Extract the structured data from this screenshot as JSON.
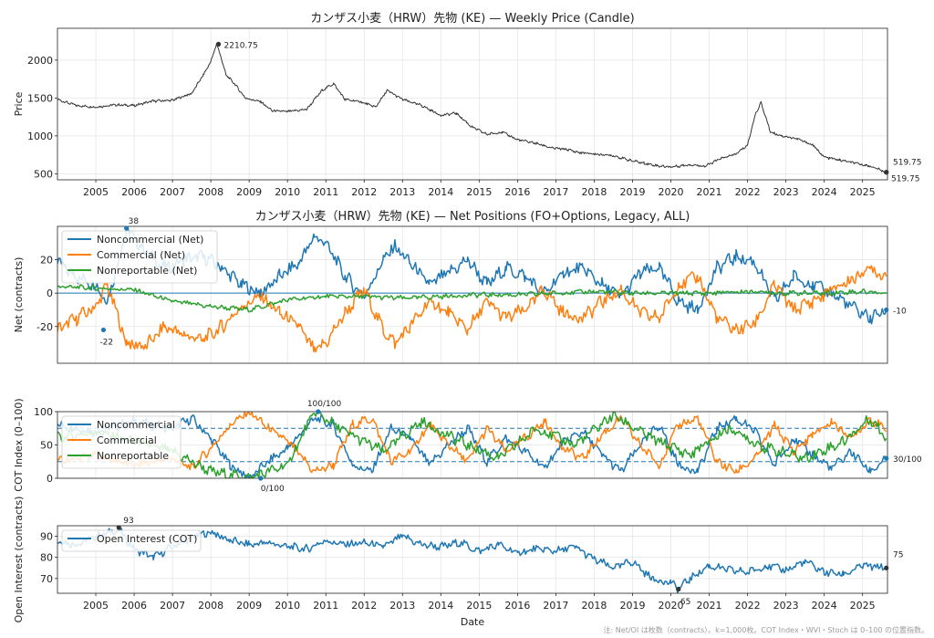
{
  "footnote": "注: Net/OI は枚数（contracts）。k=1,000枚。COT Index・WVI・Stoch は 0–100 の位置指数。",
  "colors": {
    "price": "#333333",
    "noncommercial": "#1f77b4",
    "commercial": "#ff7f0e",
    "nonreportable": "#2ca02c",
    "grid": "#e6e6e6"
  },
  "chart_data": [
    {
      "type": "line",
      "title": "カンザス小麦（HRW）先物 (KE) — Weekly Price (Candle)",
      "ylabel": "Price",
      "xlim": [
        2004.0,
        2025.65
      ],
      "ylim": [
        420,
        2420
      ],
      "xticks": [
        2005,
        2006,
        2007,
        2008,
        2009,
        2010,
        2011,
        2012,
        2013,
        2014,
        2015,
        2016,
        2017,
        2018,
        2019,
        2020,
        2021,
        2022,
        2023,
        2024,
        2025
      ],
      "yticks": [
        500,
        1000,
        1500,
        2000
      ],
      "annotations": [
        {
          "x": 2008.2,
          "y": 2210.75,
          "label": "2210.75"
        },
        {
          "x": 2025.62,
          "y": 519.75,
          "label": "519.75"
        },
        {
          "x": 2025.62,
          "y": 519.75,
          "label": "519.75"
        }
      ],
      "series": [
        {
          "x": [
            2004.0,
            2004.5,
            2005.0,
            2005.5,
            2006.0,
            2006.5,
            2007.0,
            2007.5,
            2007.8,
            2008.0,
            2008.15,
            2008.2,
            2008.4,
            2008.6,
            2008.9,
            2009.3,
            2009.6,
            2010.0,
            2010.5,
            2010.9,
            2011.2,
            2011.5,
            2011.9,
            2012.3,
            2012.6,
            2013.0,
            2013.5,
            2014.0,
            2014.4,
            2014.8,
            2015.2,
            2015.6,
            2016.0,
            2016.5,
            2016.9,
            2017.3,
            2017.6,
            2018.0,
            2018.5,
            2018.9,
            2019.3,
            2019.7,
            2020.0,
            2020.5,
            2020.9,
            2021.3,
            2021.7,
            2022.0,
            2022.2,
            2022.35,
            2022.6,
            2022.9,
            2023.3,
            2023.7,
            2024.0,
            2024.4,
            2024.8,
            2025.2,
            2025.62
          ],
          "values": [
            1480,
            1400,
            1380,
            1410,
            1400,
            1460,
            1470,
            1560,
            1800,
            1980,
            2210,
            2150,
            1800,
            1700,
            1500,
            1450,
            1330,
            1320,
            1350,
            1600,
            1690,
            1480,
            1450,
            1380,
            1600,
            1480,
            1400,
            1270,
            1300,
            1120,
            1020,
            1050,
            950,
            900,
            840,
            820,
            780,
            760,
            740,
            680,
            640,
            600,
            590,
            620,
            600,
            700,
            760,
            880,
            1280,
            1440,
            1050,
            1000,
            960,
            880,
            720,
            680,
            640,
            600,
            519.75
          ]
        }
      ]
    },
    {
      "type": "line",
      "title": "カンザス小麦（HRW）先物 (KE) — Net Positions (FO+Options, Legacy, ALL)",
      "ylabel": "Net (contracts)",
      "xlim": [
        2004.0,
        2025.65
      ],
      "ylim": [
        -42,
        40
      ],
      "yticks": [
        -20,
        0,
        20
      ],
      "legend": "top-left",
      "annotations": [
        {
          "x": 2005.8,
          "y": 38,
          "label": "38"
        },
        {
          "x": 2005.2,
          "y": -22,
          "label": "-22"
        },
        {
          "x": 2025.62,
          "y": -10,
          "label": "-10"
        }
      ],
      "series": [
        {
          "name": "Noncommercial (Net)",
          "x": [
            2004.0,
            2004.5,
            2005.0,
            2005.3,
            2005.8,
            2006.3,
            2006.8,
            2007.3,
            2007.8,
            2008.3,
            2008.8,
            2009.3,
            2009.8,
            2010.3,
            2010.7,
            2011.0,
            2011.5,
            2012.0,
            2012.5,
            2012.8,
            2013.2,
            2013.7,
            2014.2,
            2014.7,
            2015.2,
            2015.7,
            2016.2,
            2016.7,
            2017.2,
            2017.7,
            2018.2,
            2018.7,
            2019.2,
            2019.7,
            2020.2,
            2020.7,
            2021.2,
            2021.7,
            2022.2,
            2022.7,
            2023.2,
            2023.7,
            2024.2,
            2024.7,
            2025.2,
            2025.62
          ],
          "values": [
            18,
            10,
            5,
            -5,
            38,
            25,
            15,
            20,
            22,
            15,
            5,
            0,
            10,
            18,
            34,
            30,
            10,
            -2,
            20,
            28,
            18,
            5,
            12,
            20,
            5,
            15,
            10,
            0,
            12,
            15,
            5,
            -2,
            12,
            15,
            -5,
            -10,
            15,
            22,
            18,
            -5,
            10,
            5,
            0,
            -8,
            -15,
            -10
          ]
        },
        {
          "name": "Commercial (Net)",
          "x": [
            2004.0,
            2004.5,
            2005.0,
            2005.3,
            2005.8,
            2006.3,
            2006.8,
            2007.3,
            2007.8,
            2008.3,
            2008.8,
            2009.3,
            2009.8,
            2010.3,
            2010.7,
            2011.0,
            2011.5,
            2012.0,
            2012.5,
            2012.8,
            2013.2,
            2013.7,
            2014.2,
            2014.7,
            2015.2,
            2015.7,
            2016.2,
            2016.7,
            2017.2,
            2017.7,
            2018.2,
            2018.7,
            2019.2,
            2019.7,
            2020.2,
            2020.7,
            2021.2,
            2021.7,
            2022.2,
            2022.7,
            2023.2,
            2023.7,
            2024.2,
            2024.7,
            2025.2,
            2025.62
          ],
          "values": [
            -22,
            -15,
            -8,
            5,
            -30,
            -32,
            -20,
            -25,
            -28,
            -20,
            -8,
            -2,
            -12,
            -20,
            -35,
            -30,
            -12,
            2,
            -22,
            -30,
            -20,
            -5,
            -12,
            -22,
            -5,
            -15,
            -10,
            2,
            -12,
            -15,
            -5,
            2,
            -12,
            -15,
            5,
            10,
            -15,
            -22,
            -18,
            5,
            -10,
            -5,
            2,
            8,
            15,
            10
          ]
        },
        {
          "name": "Nonreportable (Net)",
          "x": [
            2004.0,
            2005.0,
            2006.0,
            2007.0,
            2008.0,
            2009.0,
            2010.0,
            2011.0,
            2012.0,
            2013.0,
            2014.0,
            2015.0,
            2016.0,
            2017.0,
            2018.0,
            2019.0,
            2020.0,
            2021.0,
            2022.0,
            2023.0,
            2024.0,
            2025.0,
            2025.62
          ],
          "values": [
            4,
            3,
            2,
            -5,
            -8,
            -10,
            -4,
            -2,
            -2,
            -3,
            -2,
            -1,
            -1,
            0,
            1,
            0,
            0,
            0,
            1,
            0,
            0,
            1,
            0
          ]
        }
      ]
    },
    {
      "type": "line",
      "ylabel": "COT Index (0–100)",
      "xlim": [
        2004.0,
        2025.65
      ],
      "ylim": [
        0,
        100
      ],
      "yticks": [
        0,
        50,
        100
      ],
      "hlines": [
        25,
        75
      ],
      "legend": "top-left",
      "annotations": [
        {
          "x": 2010.8,
          "y": 100,
          "label": "100/100"
        },
        {
          "x": 2009.3,
          "y": 0,
          "label": "0/100"
        },
        {
          "x": 2025.62,
          "y": 30,
          "label": "30/100"
        }
      ],
      "series": [
        {
          "name": "Noncommercial",
          "x": [
            2004.0,
            2005.0,
            2006.0,
            2007.0,
            2007.5,
            2008.0,
            2008.5,
            2009.0,
            2009.5,
            2010.0,
            2010.7,
            2011.2,
            2011.7,
            2012.2,
            2012.7,
            2013.2,
            2013.7,
            2014.2,
            2014.7,
            2015.2,
            2015.7,
            2016.2,
            2016.7,
            2017.2,
            2017.7,
            2018.2,
            2018.7,
            2019.2,
            2019.7,
            2020.2,
            2020.7,
            2021.2,
            2021.7,
            2022.2,
            2022.7,
            2023.2,
            2023.7,
            2024.2,
            2024.7,
            2025.2,
            2025.62
          ],
          "values": [
            80,
            70,
            85,
            75,
            90,
            60,
            20,
            0,
            25,
            45,
            90,
            80,
            20,
            10,
            75,
            60,
            20,
            50,
            75,
            25,
            60,
            40,
            15,
            55,
            70,
            35,
            10,
            50,
            80,
            20,
            10,
            75,
            90,
            70,
            20,
            60,
            35,
            15,
            40,
            10,
            30
          ]
        },
        {
          "name": "Commercial",
          "x": [
            2004.0,
            2005.0,
            2006.0,
            2007.0,
            2007.5,
            2008.0,
            2008.5,
            2009.0,
            2009.5,
            2010.0,
            2010.7,
            2011.2,
            2011.7,
            2012.2,
            2012.7,
            2013.2,
            2013.7,
            2014.2,
            2014.7,
            2015.2,
            2015.7,
            2016.2,
            2016.7,
            2017.2,
            2017.7,
            2018.2,
            2018.7,
            2019.2,
            2019.7,
            2020.2,
            2020.7,
            2021.2,
            2021.7,
            2022.2,
            2022.7,
            2023.2,
            2023.7,
            2024.2,
            2024.7,
            2025.2,
            2025.62
          ],
          "values": [
            25,
            35,
            20,
            30,
            15,
            45,
            80,
            100,
            75,
            55,
            10,
            20,
            80,
            90,
            25,
            40,
            80,
            50,
            25,
            75,
            40,
            60,
            85,
            45,
            30,
            65,
            90,
            50,
            20,
            80,
            90,
            25,
            10,
            30,
            80,
            40,
            65,
            85,
            60,
            90,
            70
          ]
        },
        {
          "name": "Nonreportable",
          "x": [
            2004.0,
            2005.0,
            2006.0,
            2007.0,
            2008.0,
            2009.0,
            2010.0,
            2010.7,
            2011.5,
            2012.5,
            2013.5,
            2014.5,
            2015.5,
            2016.5,
            2017.5,
            2018.5,
            2019.5,
            2020.5,
            2021.5,
            2022.5,
            2023.5,
            2024.5,
            2025.2,
            2025.62
          ],
          "values": [
            60,
            70,
            55,
            40,
            10,
            0,
            20,
            100,
            70,
            40,
            85,
            55,
            30,
            75,
            50,
            95,
            60,
            35,
            75,
            45,
            30,
            55,
            90,
            60
          ]
        }
      ]
    },
    {
      "type": "line",
      "ylabel": "Open Interest (contracts)",
      "xlabel": "Date",
      "xlim": [
        2004.0,
        2025.65
      ],
      "ylim": [
        63,
        95
      ],
      "xticks": [
        2005,
        2006,
        2007,
        2008,
        2009,
        2010,
        2011,
        2012,
        2013,
        2014,
        2015,
        2016,
        2017,
        2018,
        2019,
        2020,
        2021,
        2022,
        2023,
        2024,
        2025
      ],
      "yticks": [
        70,
        80,
        90
      ],
      "legend": "top-left",
      "annotations": [
        {
          "x": 2005.6,
          "y": 93,
          "label": "93"
        },
        {
          "x": 2020.2,
          "y": 65,
          "label": "65"
        },
        {
          "x": 2025.62,
          "y": 75,
          "label": "75"
        }
      ],
      "series": [
        {
          "name": "Open Interest (COT)",
          "x": [
            2004.0,
            2004.5,
            2005.0,
            2005.6,
            2006.0,
            2006.5,
            2007.0,
            2007.6,
            2008.0,
            2008.5,
            2009.0,
            2009.5,
            2010.0,
            2010.5,
            2011.0,
            2011.5,
            2012.0,
            2012.5,
            2013.0,
            2013.5,
            2014.0,
            2014.5,
            2015.0,
            2015.5,
            2016.0,
            2016.5,
            2017.0,
            2017.5,
            2018.0,
            2018.5,
            2019.0,
            2019.5,
            2020.0,
            2020.2,
            2020.5,
            2021.0,
            2021.5,
            2022.0,
            2022.5,
            2023.0,
            2023.5,
            2024.0,
            2024.5,
            2025.0,
            2025.62
          ],
          "values": [
            88,
            86,
            90,
            93,
            84,
            80,
            85,
            90,
            92,
            88,
            86,
            87,
            85,
            84,
            88,
            86,
            87,
            85,
            90,
            86,
            85,
            87,
            83,
            86,
            82,
            84,
            83,
            85,
            79,
            75,
            78,
            70,
            68,
            65,
            70,
            76,
            74,
            73,
            76,
            74,
            78,
            73,
            72,
            76,
            75
          ]
        }
      ]
    }
  ]
}
